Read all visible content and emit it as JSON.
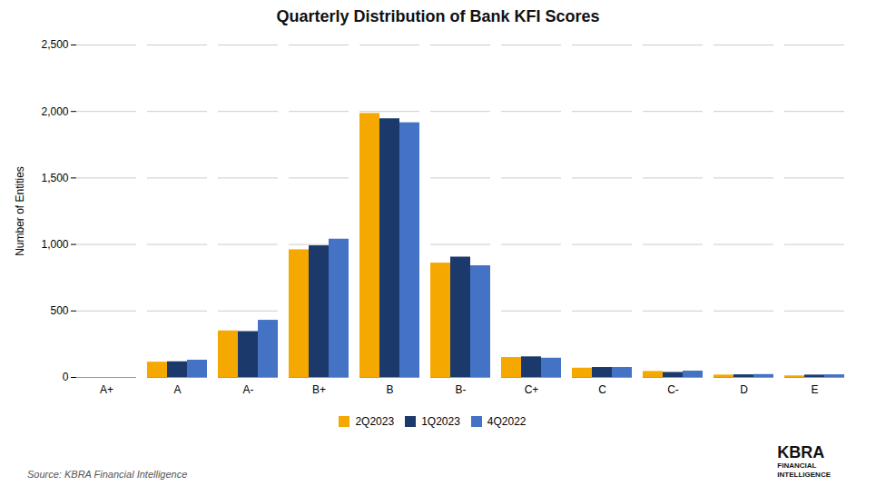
{
  "chart_data": {
    "type": "bar",
    "title": "Quarterly Distribution of Bank KFI Scores",
    "categories": [
      "A+",
      "A",
      "A-",
      "B+",
      "B",
      "B-",
      "C+",
      "C",
      "C-",
      "D",
      "E"
    ],
    "series": [
      {
        "name": "2Q2023",
        "color": "#F5A800",
        "values": [
          0,
          115,
          350,
          960,
          1985,
          860,
          150,
          70,
          45,
          18,
          12
        ]
      },
      {
        "name": "1Q2023",
        "color": "#1B3A6B",
        "values": [
          0,
          118,
          345,
          990,
          1945,
          905,
          155,
          75,
          38,
          20,
          18
        ]
      },
      {
        "name": "4Q2022",
        "color": "#4472C4",
        "values": [
          0,
          130,
          430,
          1040,
          1915,
          840,
          145,
          75,
          48,
          22,
          20
        ]
      }
    ],
    "ylabel": "Number of Entities",
    "ylim": [
      0,
      2500
    ],
    "yticks": [
      0,
      500,
      {
        "value": 1000,
        "label": "1,000"
      },
      {
        "value": 1500,
        "label": "1,500"
      },
      {
        "value": 2000,
        "label": "2,000"
      },
      {
        "value": 2500,
        "label": "2,500"
      }
    ],
    "grid": true,
    "legend": "bottom",
    "annotations": [
      "Source: KBRA Financial Intelligence",
      "KBRA",
      "FINANCIAL\nINTELLIGENCE"
    ]
  }
}
